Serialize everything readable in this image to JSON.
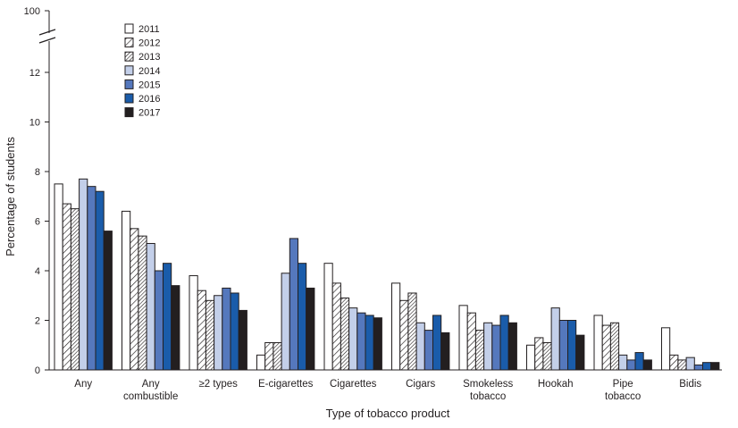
{
  "chart_data": {
    "type": "bar",
    "xlabel": "Type of tobacco product",
    "ylabel": "Percentage of students",
    "ylim": [
      0,
      13
    ],
    "y_break_top_label": "100",
    "yticks": [
      0,
      2,
      4,
      6,
      8,
      10,
      12
    ],
    "grid": false,
    "legend_position": "top-left",
    "categories": [
      [
        "Any"
      ],
      [
        "Any",
        "combustible"
      ],
      [
        "≥2 types"
      ],
      [
        "E-cigarettes"
      ],
      [
        "Cigarettes"
      ],
      [
        "Cigars"
      ],
      [
        "Smokeless",
        "tobacco"
      ],
      [
        "Hookah"
      ],
      [
        "Pipe",
        "tobacco"
      ],
      [
        "Bidis"
      ]
    ],
    "series": [
      {
        "name": "2011",
        "values": [
          7.5,
          6.4,
          3.8,
          0.6,
          4.3,
          3.5,
          2.6,
          1.0,
          2.2,
          1.7
        ]
      },
      {
        "name": "2012",
        "values": [
          6.7,
          5.7,
          3.2,
          1.1,
          3.5,
          2.8,
          2.3,
          1.3,
          1.8,
          0.6
        ]
      },
      {
        "name": "2013",
        "values": [
          6.5,
          5.4,
          2.8,
          1.1,
          2.9,
          3.1,
          1.6,
          1.1,
          1.9,
          0.4
        ]
      },
      {
        "name": "2014",
        "values": [
          7.7,
          5.1,
          3.0,
          3.9,
          2.5,
          1.9,
          1.9,
          2.5,
          0.6,
          0.5
        ]
      },
      {
        "name": "2015",
        "values": [
          7.4,
          4.0,
          3.3,
          5.3,
          2.3,
          1.6,
          1.8,
          2.0,
          0.4,
          0.2
        ]
      },
      {
        "name": "2016",
        "values": [
          7.2,
          4.3,
          3.1,
          4.3,
          2.2,
          2.2,
          2.2,
          2.0,
          0.7,
          0.3
        ]
      },
      {
        "name": "2017",
        "values": [
          5.6,
          3.4,
          2.4,
          3.3,
          2.1,
          1.5,
          1.9,
          1.4,
          0.4,
          0.3
        ]
      }
    ],
    "series_styles": [
      "white",
      "diagonal-hatch",
      "dense-diagonal-hatch",
      "#c3cfe9",
      "#5578bd",
      "#1a5caa",
      "#231f20"
    ]
  }
}
